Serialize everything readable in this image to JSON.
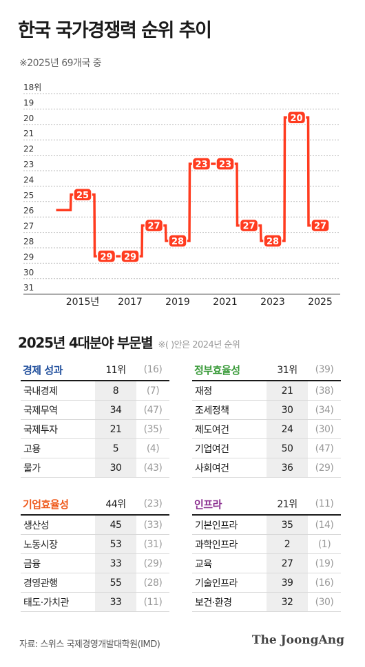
{
  "title": "한국 국가경쟁력 순위 추이",
  "subtitle": "※2025년 69개국 중",
  "colors": {
    "line": "#ff3b1f",
    "grid": "#bbbbbb"
  },
  "chart_data": {
    "type": "line",
    "line_style": "step",
    "y_axis_label_top": "18위",
    "y_ticks": [
      19,
      20,
      21,
      22,
      23,
      24,
      25,
      26,
      27,
      28,
      29,
      30,
      31
    ],
    "ylim": [
      18,
      31
    ],
    "y_inverted": true,
    "x_tick_labels": [
      "2015년",
      "2017",
      "2019",
      "2021",
      "2023",
      "2025"
    ],
    "x": [
      2014,
      2015,
      2016,
      2017,
      2018,
      2019,
      2020,
      2021,
      2022,
      2023,
      2024,
      2025
    ],
    "y": [
      26,
      25,
      29,
      29,
      27,
      28,
      23,
      23,
      27,
      28,
      20,
      27
    ],
    "labeled_points": [
      2015,
      2016,
      2017,
      2018,
      2019,
      2020,
      2021,
      2022,
      2023,
      2024,
      2025
    ]
  },
  "section2": {
    "title": "2025년 4대분야 부문별",
    "note": "※( )안은 2024년 순위"
  },
  "tables": [
    {
      "category": "경제 성과",
      "color": "#1f4e9c",
      "rank": "11위",
      "prev": "(16)",
      "rows": [
        {
          "name": "국내경제",
          "value": "8",
          "prev": "(7)"
        },
        {
          "name": "국제무역",
          "value": "34",
          "prev": "(47)"
        },
        {
          "name": "국제투자",
          "value": "21",
          "prev": "(35)"
        },
        {
          "name": "고용",
          "value": "5",
          "prev": "(4)"
        },
        {
          "name": "물가",
          "value": "30",
          "prev": "(43)"
        }
      ]
    },
    {
      "category": "정부효율성",
      "color": "#3a9b3a",
      "rank": "31위",
      "prev": "(39)",
      "rows": [
        {
          "name": "재정",
          "value": "21",
          "prev": "(38)"
        },
        {
          "name": "조세정책",
          "value": "30",
          "prev": "(34)"
        },
        {
          "name": "제도여건",
          "value": "24",
          "prev": "(30)"
        },
        {
          "name": "기업여건",
          "value": "50",
          "prev": "(47)"
        },
        {
          "name": "사회여건",
          "value": "36",
          "prev": "(29)"
        }
      ]
    },
    {
      "category": "기업효율성",
      "color": "#ef5a1c",
      "rank": "44위",
      "prev": "(23)",
      "rows": [
        {
          "name": "생산성",
          "value": "45",
          "prev": "(33)"
        },
        {
          "name": "노동시장",
          "value": "53",
          "prev": "(31)"
        },
        {
          "name": "금융",
          "value": "33",
          "prev": "(29)"
        },
        {
          "name": "경영관행",
          "value": "55",
          "prev": "(28)"
        },
        {
          "name": "태도·가치관",
          "value": "33",
          "prev": "(11)"
        }
      ]
    },
    {
      "category": "인프라",
      "color": "#8a2d8f",
      "rank": "21위",
      "prev": "(11)",
      "rows": [
        {
          "name": "기본인프라",
          "value": "35",
          "prev": "(14)"
        },
        {
          "name": "과학인프라",
          "value": "2",
          "prev": "(1)"
        },
        {
          "name": "교육",
          "value": "27",
          "prev": "(19)"
        },
        {
          "name": "기술인프라",
          "value": "39",
          "prev": "(16)"
        },
        {
          "name": "보건·환경",
          "value": "32",
          "prev": "(30)"
        }
      ]
    }
  ],
  "source": "자료: 스위스 국제경영개발대학원(IMD)",
  "brand": "The JoongAng"
}
